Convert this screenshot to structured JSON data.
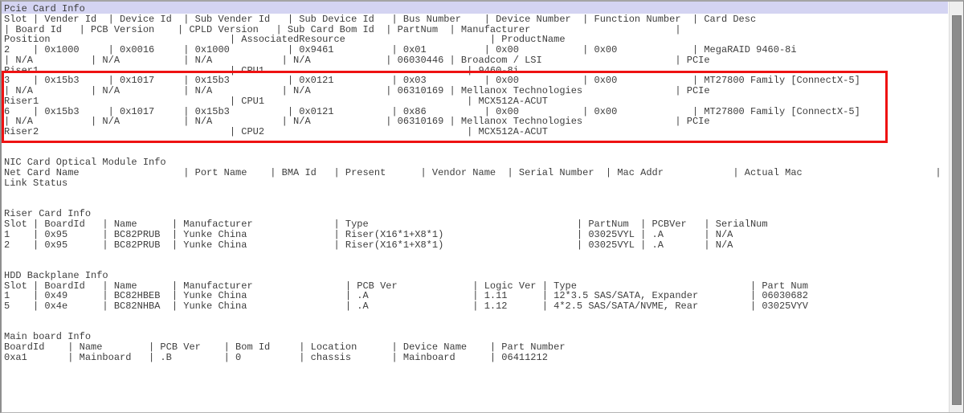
{
  "theme": {
    "text_color": "#3d3d3d",
    "selection_color": "#d4d4f2",
    "annotation_red": "#ee1212",
    "scrollbar_track": "#efefef",
    "scrollbar_thumb": "#8b8b8b",
    "background": "#ffffff"
  },
  "sections": {
    "pcie": {
      "name": "Pcie Card Info",
      "lines": [
        "Pcie Card Info",
        "Slot | Vender Id  | Device Id  | Sub Vender Id   | Sub Device Id   | Bus Number    | Device Number  | Function Number  | Card Desc",
        "| Board Id   | PCB Version    | CPLD Version   | Sub Card Bom Id  | PartNum  | Manufacturer                         |",
        "Position                               | AssociatedResource                         | ProductName",
        "2    | 0x1000     | 0x0016     | 0x1000          | 0x9461          | 0x01          | 0x00           | 0x00             | MegaRAID 9460-8i",
        "| N/A          | N/A           | N/A            | N/A             | 06030446 | Broadcom / LSI                       | PCIe",
        "Riser1                                 | CPU1                                   | 9460-8i",
        "3    | 0x15b3     | 0x1017     | 0x15b3          | 0x0121          | 0x03          | 0x00           | 0x00             | MT27800 Family [ConnectX-5]",
        "| N/A          | N/A           | N/A            | N/A             | 06310169 | Mellanox Technologies                | PCIe",
        "Riser1                                 | CPU1                                   | MCX512A-ACUT",
        "6    | 0x15b3     | 0x1017     | 0x15b3          | 0x0121          | 0x86          | 0x00           | 0x00             | MT27800 Family [ConnectX-5]",
        "| N/A          | N/A           | N/A            | N/A             | 06310169 | Mellanox Technologies                | PCIe",
        "Riser2                                 | CPU2                                   | MCX512A-ACUT"
      ]
    },
    "nic": {
      "name": "NIC Card Optical Module Info",
      "lines": [
        "NIC Card Optical Module Info",
        "Net Card Name                  | Port Name    | BMA Id   | Present      | Vendor Name  | Serial Number  | Mac Addr            | Actual Mac                       |",
        "Link Status"
      ]
    },
    "riser": {
      "name": "Riser Card Info",
      "lines": [
        "Riser Card Info",
        "Slot | BoardId   | Name      | Manufacturer              | Type                                    | PartNum  | PCBVer   | SerialNum",
        "1    | 0x95      | BC82PRUB  | Yunke China               | Riser(X16*1+X8*1)                       | 03025VYL | .A       | N/A",
        "2    | 0x95      | BC82PRUB  | Yunke China               | Riser(X16*1+X8*1)                       | 03025VYL | .A       | N/A"
      ]
    },
    "hdd": {
      "name": "HDD Backplane Info",
      "lines": [
        "HDD Backplane Info",
        "Slot | BoardId   | Name      | Manufacturer                | PCB Ver             | Logic Ver | Type                              | Part Num",
        "1    | 0x49      | BC82HBEB  | Yunke China                 | .A                  | 1.11      | 12*3.5 SAS/SATA, Expander         | 06030682",
        "5    | 0x4e      | BC82NHBA  | Yunke China                 | .A                  | 1.12      | 4*2.5 SAS/SATA/NVME, Rear         | 03025VYV"
      ]
    },
    "mainboard": {
      "name": "Main board Info",
      "lines": [
        "Main board Info",
        "BoardId    | Name        | PCB Ver    | Bom Id     | Location      | Device Name    | Part Number",
        "0xa1       | Mainboard   | .B         | 0          | chassis       | Mainboard      | 06411212"
      ]
    }
  },
  "annotation": {
    "highlighted_rows": [
      "Pcie slot 3 (MT27800 Family [ConnectX-5])",
      "Pcie slot 6 (MT27800 Family [ConnectX-5])"
    ]
  },
  "selection": {
    "selected_line": "Pcie Card Info"
  }
}
